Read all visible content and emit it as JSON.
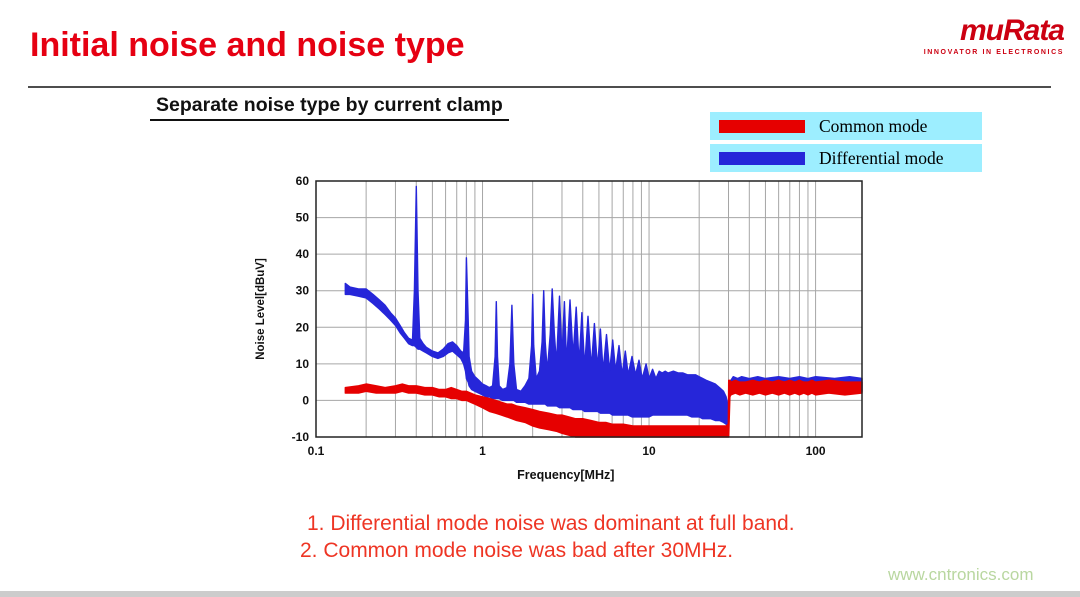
{
  "slide": {
    "title": "Initial noise and noise type",
    "subtitle": "Separate noise type by current clamp",
    "notes": [
      "1.  Differential mode noise was dominant at full band.",
      "2. Common mode noise was bad after 30MHz."
    ],
    "watermark": "www.cntronics.com"
  },
  "logo": {
    "wordmark": "muRata",
    "tagline": "INNOVATOR IN ELECTRONICS"
  },
  "legend": {
    "background": "#9deeff",
    "items": [
      {
        "label": "Common mode",
        "color": "#e60000"
      },
      {
        "label": "Differential mode",
        "color": "#2626d9"
      }
    ]
  },
  "colors": {
    "title": "#e60012",
    "notes": "#ee3524",
    "watermark": "#b9d7a0",
    "logo": "#cc0011",
    "grid": "#a6a6a6",
    "border": "#222222"
  },
  "chart_data": {
    "type": "line",
    "x_scale": "log",
    "title": "",
    "xlabel": "Frequency[MHz]",
    "ylabel": "Noise Level[dBuV]",
    "xlim": [
      0.1,
      190
    ],
    "ylim": [
      -10,
      60
    ],
    "xticks": [
      0.1,
      1,
      10,
      100
    ],
    "yticks": [
      60,
      50,
      40,
      30,
      20,
      10,
      0,
      -10
    ],
    "grid": true,
    "legend_position": "top-right",
    "series_format": "envelope points are [x_MHz, y_min_dBuV, y_max_dBuV]",
    "series": [
      {
        "name": "Common mode",
        "color": "#e60000",
        "points": [
          [
            0.15,
            2,
            3.5
          ],
          [
            0.18,
            2,
            4
          ],
          [
            0.2,
            2.5,
            4.5
          ],
          [
            0.23,
            2,
            4
          ],
          [
            0.26,
            2,
            3.5
          ],
          [
            0.3,
            2,
            4
          ],
          [
            0.33,
            2.5,
            4.5
          ],
          [
            0.36,
            2,
            4
          ],
          [
            0.4,
            2,
            4
          ],
          [
            0.45,
            1.5,
            3.5
          ],
          [
            0.5,
            1.5,
            3.5
          ],
          [
            0.55,
            1,
            3
          ],
          [
            0.6,
            1,
            3
          ],
          [
            0.65,
            0.5,
            3.5
          ],
          [
            0.7,
            0.5,
            3
          ],
          [
            0.75,
            0,
            2.5
          ],
          [
            0.8,
            0,
            2.5
          ],
          [
            0.85,
            -0.5,
            2
          ],
          [
            0.9,
            -1,
            1.5
          ],
          [
            1,
            -2,
            1
          ],
          [
            1.1,
            -3,
            0.5
          ],
          [
            1.2,
            -3.5,
            0
          ],
          [
            1.3,
            -4,
            -0.5
          ],
          [
            1.4,
            -4.5,
            -1
          ],
          [
            1.5,
            -5,
            -1
          ],
          [
            1.6,
            -5.5,
            -1.5
          ],
          [
            1.8,
            -6,
            -2
          ],
          [
            2,
            -7,
            -2.5
          ],
          [
            2.2,
            -7.5,
            -3
          ],
          [
            2.5,
            -8,
            -3.5
          ],
          [
            2.8,
            -8.5,
            -4
          ],
          [
            3,
            -9,
            -4
          ],
          [
            3.3,
            -9.5,
            -4.5
          ],
          [
            3.6,
            -10,
            -5
          ],
          [
            4,
            -10,
            -5
          ],
          [
            4.5,
            -10,
            -5.5
          ],
          [
            5,
            -10,
            -6
          ],
          [
            5.5,
            -10,
            -6
          ],
          [
            6,
            -10,
            -6.5
          ],
          [
            7,
            -10,
            -6.5
          ],
          [
            8,
            -10,
            -7
          ],
          [
            9,
            -10,
            -7
          ],
          [
            10,
            -10,
            -7
          ],
          [
            12,
            -10,
            -7
          ],
          [
            14,
            -10,
            -7
          ],
          [
            16,
            -10,
            -7
          ],
          [
            18,
            -10,
            -7
          ],
          [
            20,
            -10,
            -7
          ],
          [
            23,
            -10,
            -7
          ],
          [
            26,
            -10,
            -7
          ],
          [
            29,
            -10,
            -7
          ],
          [
            29.9,
            -10,
            -6.5
          ],
          [
            30.1,
            -10,
            5.5
          ],
          [
            30.6,
            1,
            5.5
          ],
          [
            31,
            1.5,
            5
          ],
          [
            33,
            2,
            5.5
          ],
          [
            35,
            1.5,
            5
          ],
          [
            38,
            2,
            5
          ],
          [
            42,
            1.5,
            5.5
          ],
          [
            46,
            2,
            5
          ],
          [
            50,
            1.5,
            5.5
          ],
          [
            55,
            2,
            5
          ],
          [
            60,
            1.5,
            5.5
          ],
          [
            65,
            2,
            5
          ],
          [
            70,
            1.5,
            5.5
          ],
          [
            75,
            2,
            5
          ],
          [
            80,
            1.5,
            5.5
          ],
          [
            85,
            2,
            5
          ],
          [
            90,
            1.5,
            5
          ],
          [
            95,
            2,
            5.5
          ],
          [
            100,
            1.5,
            5
          ],
          [
            120,
            2,
            5.5
          ],
          [
            150,
            1.5,
            5
          ],
          [
            190,
            2,
            5
          ]
        ]
      },
      {
        "name": "Differential mode",
        "color": "#2626d9",
        "points": [
          [
            0.15,
            29,
            32
          ],
          [
            0.16,
            29,
            31
          ],
          [
            0.18,
            28.5,
            30.5
          ],
          [
            0.2,
            28,
            30.5
          ],
          [
            0.22,
            26.5,
            29
          ],
          [
            0.24,
            25,
            27.5
          ],
          [
            0.26,
            23.5,
            26
          ],
          [
            0.28,
            22,
            24
          ],
          [
            0.3,
            20.5,
            22.5
          ],
          [
            0.32,
            18.5,
            20.5
          ],
          [
            0.34,
            17,
            18.5
          ],
          [
            0.36,
            15.5,
            17
          ],
          [
            0.38,
            15,
            16.5
          ],
          [
            0.39,
            15,
            30
          ],
          [
            0.4,
            14.5,
            58.5
          ],
          [
            0.41,
            14,
            30
          ],
          [
            0.42,
            14,
            17
          ],
          [
            0.44,
            13.5,
            15.5
          ],
          [
            0.46,
            13,
            14.5
          ],
          [
            0.5,
            12,
            13.5
          ],
          [
            0.54,
            11.5,
            13
          ],
          [
            0.58,
            12,
            14
          ],
          [
            0.62,
            13,
            15.5
          ],
          [
            0.66,
            13.5,
            16
          ],
          [
            0.7,
            12.5,
            15
          ],
          [
            0.74,
            11.5,
            13.5
          ],
          [
            0.77,
            10,
            13
          ],
          [
            0.79,
            8,
            22
          ],
          [
            0.8,
            6,
            39
          ],
          [
            0.82,
            5,
            22
          ],
          [
            0.83,
            4,
            12
          ],
          [
            0.86,
            3,
            8
          ],
          [
            0.9,
            2.5,
            6.5
          ],
          [
            0.95,
            2,
            5.5
          ],
          [
            1,
            1.5,
            4.5
          ],
          [
            1.05,
            1,
            4
          ],
          [
            1.1,
            1,
            3.5
          ],
          [
            1.15,
            0.5,
            4
          ],
          [
            1.19,
            0.5,
            12
          ],
          [
            1.21,
            0.5,
            27
          ],
          [
            1.23,
            0.5,
            12
          ],
          [
            1.26,
            0.5,
            4
          ],
          [
            1.32,
            0,
            3
          ],
          [
            1.4,
            0,
            3.5
          ],
          [
            1.46,
            0,
            10
          ],
          [
            1.5,
            0,
            26
          ],
          [
            1.54,
            0,
            10
          ],
          [
            1.6,
            -0.5,
            3
          ],
          [
            1.7,
            -0.5,
            2.5
          ],
          [
            1.8,
            -0.5,
            4
          ],
          [
            1.9,
            -1,
            6
          ],
          [
            1.97,
            -1,
            15
          ],
          [
            2,
            -1,
            29
          ],
          [
            2.03,
            -1,
            15
          ],
          [
            2.1,
            -1,
            6
          ],
          [
            2.2,
            -1,
            8
          ],
          [
            2.28,
            -1,
            16
          ],
          [
            2.33,
            -1,
            30
          ],
          [
            2.38,
            -1,
            16
          ],
          [
            2.45,
            -1.5,
            8
          ],
          [
            2.55,
            -1.5,
            18
          ],
          [
            2.62,
            -1.5,
            30.5
          ],
          [
            2.7,
            -1.5,
            18
          ],
          [
            2.78,
            -1.5,
            10
          ],
          [
            2.9,
            -2,
            28.5
          ],
          [
            3,
            -2,
            12
          ],
          [
            3.1,
            -2,
            27
          ],
          [
            3.2,
            -2,
            10
          ],
          [
            3.35,
            -2,
            27.5
          ],
          [
            3.5,
            -2.5,
            12
          ],
          [
            3.65,
            -2.5,
            25.5
          ],
          [
            3.8,
            -2.5,
            10
          ],
          [
            3.95,
            -2.5,
            24
          ],
          [
            4.1,
            -3,
            9
          ],
          [
            4.3,
            -3,
            23
          ],
          [
            4.5,
            -3,
            9
          ],
          [
            4.7,
            -3,
            21
          ],
          [
            4.9,
            -3,
            9
          ],
          [
            5.1,
            -3.5,
            19.5
          ],
          [
            5.3,
            -3.5,
            8
          ],
          [
            5.55,
            -3.5,
            18
          ],
          [
            5.8,
            -3.5,
            8
          ],
          [
            6.05,
            -4,
            16.5
          ],
          [
            6.3,
            -4,
            8
          ],
          [
            6.6,
            -4,
            15
          ],
          [
            6.9,
            -4,
            7
          ],
          [
            7.2,
            -4,
            13.5
          ],
          [
            7.5,
            -4,
            7
          ],
          [
            7.9,
            -4.5,
            12
          ],
          [
            8.3,
            -4.5,
            7
          ],
          [
            8.7,
            -4.5,
            11
          ],
          [
            9.1,
            -4.5,
            6
          ],
          [
            9.6,
            -4.5,
            10
          ],
          [
            10,
            -4.5,
            6
          ],
          [
            10.5,
            -4,
            8.5
          ],
          [
            11,
            -4,
            6
          ],
          [
            11.5,
            -4,
            8
          ],
          [
            12,
            -4,
            7.5
          ],
          [
            12.5,
            -4,
            8
          ],
          [
            13,
            -4,
            7.5
          ],
          [
            14,
            -4,
            8
          ],
          [
            15,
            -4,
            7.5
          ],
          [
            16,
            -4,
            7.5
          ],
          [
            17,
            -4,
            7
          ],
          [
            18,
            -4.5,
            7
          ],
          [
            19,
            -4.5,
            7
          ],
          [
            20,
            -4.5,
            6.5
          ],
          [
            21,
            -5,
            6
          ],
          [
            22,
            -5,
            5.5
          ],
          [
            23.5,
            -5,
            5
          ],
          [
            25,
            -5.5,
            4.5
          ],
          [
            26.5,
            -5.5,
            3.5
          ],
          [
            28,
            -6,
            2.5
          ],
          [
            29,
            -6.5,
            1
          ],
          [
            29.8,
            -7,
            -2
          ],
          [
            30.5,
            2,
            5
          ],
          [
            32,
            2,
            6.5
          ],
          [
            34,
            2.5,
            6
          ],
          [
            36,
            2,
            6.5
          ],
          [
            40,
            2.5,
            6
          ],
          [
            45,
            2,
            6.5
          ],
          [
            50,
            2.5,
            6
          ],
          [
            60,
            2,
            6.5
          ],
          [
            70,
            2.5,
            6
          ],
          [
            80,
            2,
            6.5
          ],
          [
            90,
            2.5,
            6
          ],
          [
            100,
            2,
            6.5
          ],
          [
            130,
            2.5,
            6
          ],
          [
            160,
            2,
            6.5
          ],
          [
            190,
            2.5,
            6
          ]
        ]
      }
    ]
  }
}
